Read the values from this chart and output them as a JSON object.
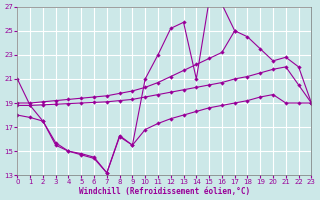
{
  "xlabel": "Windchill (Refroidissement éolien,°C)",
  "bg_color": "#cce8e8",
  "grid_color": "#ffffff",
  "line_color": "#990099",
  "xlim": [
    0,
    23
  ],
  "ylim": [
    13,
    27
  ],
  "yticks": [
    13,
    15,
    17,
    19,
    21,
    23,
    25,
    27
  ],
  "xticks": [
    0,
    1,
    2,
    3,
    4,
    5,
    6,
    7,
    8,
    9,
    10,
    11,
    12,
    13,
    14,
    15,
    16,
    17,
    18,
    19,
    20,
    21,
    22,
    23
  ],
  "curves": [
    {
      "x": [
        0,
        1,
        2,
        3,
        4,
        5,
        6,
        7,
        8,
        9,
        10,
        11,
        12,
        13,
        14,
        15,
        16,
        17
      ],
      "y": [
        21,
        18.8,
        17.5,
        15.5,
        15.0,
        14.8,
        14.5,
        13.2,
        16.3,
        15.5,
        21.0,
        23.0,
        25.2,
        25.7,
        21.0,
        27.5,
        27.2,
        25.0
      ]
    },
    {
      "x": [
        0,
        1,
        2,
        3,
        4,
        5,
        6,
        7,
        8,
        9,
        10,
        11,
        12,
        13,
        14,
        15,
        16,
        17,
        18,
        19,
        20,
        21,
        22,
        23
      ],
      "y": [
        19,
        19.0,
        19.1,
        19.2,
        19.3,
        19.4,
        19.5,
        19.6,
        19.8,
        20.0,
        20.3,
        20.7,
        21.2,
        21.7,
        22.2,
        22.7,
        23.2,
        25.0,
        24.5,
        23.5,
        22.5,
        22.8,
        22.0,
        19.0
      ]
    },
    {
      "x": [
        0,
        1,
        2,
        3,
        4,
        5,
        6,
        7,
        8,
        9,
        10,
        11,
        12,
        13,
        14,
        15,
        16,
        17,
        18,
        19,
        20,
        21,
        22,
        23
      ],
      "y": [
        18.8,
        18.8,
        18.85,
        18.9,
        18.95,
        19.0,
        19.05,
        19.1,
        19.2,
        19.3,
        19.5,
        19.7,
        19.9,
        20.1,
        20.3,
        20.5,
        20.7,
        21.0,
        21.2,
        21.5,
        21.8,
        22.0,
        20.5,
        19.0
      ]
    },
    {
      "x": [
        0,
        1,
        2,
        3,
        4,
        5,
        6,
        7,
        8,
        9,
        10,
        11,
        12,
        13,
        14,
        15,
        16,
        17,
        18,
        19,
        20,
        21,
        22,
        23
      ],
      "y": [
        18.0,
        17.8,
        17.5,
        15.7,
        15.0,
        14.7,
        14.4,
        13.2,
        16.2,
        15.5,
        16.8,
        17.3,
        17.7,
        18.0,
        18.3,
        18.6,
        18.8,
        19.0,
        19.2,
        19.5,
        19.7,
        19.0,
        19.0,
        19.0
      ]
    }
  ]
}
